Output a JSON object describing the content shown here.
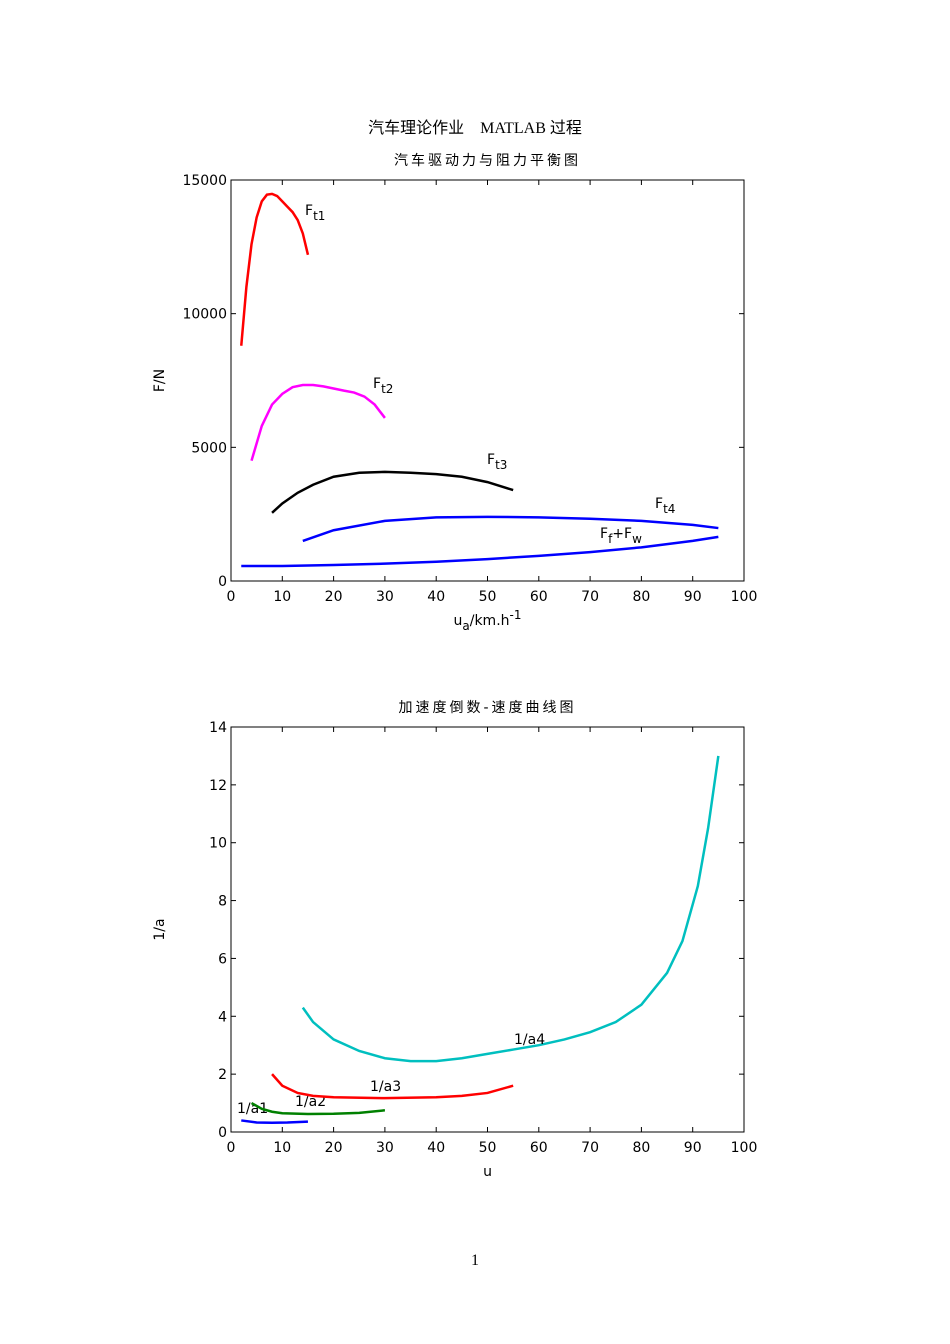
{
  "header": {
    "title": "汽车理论作业　MATLAB 过程"
  },
  "footer": {
    "page": "1"
  },
  "chart_data": [
    {
      "type": "line",
      "title": "汽车驱动力与阻力平衡图",
      "x_label": [
        "u",
        "a",
        "/km.h",
        "-1"
      ],
      "y_label": "F/N",
      "xlim": [
        0,
        100
      ],
      "xticks": [
        0,
        10,
        20,
        30,
        40,
        50,
        60,
        70,
        80,
        90,
        100
      ],
      "ylim": [
        0,
        15000
      ],
      "yticks": [
        0,
        5000,
        10000,
        15000
      ],
      "series": [
        {
          "label": [
            "F",
            "t1"
          ],
          "color": "#ff0000",
          "x": [
            2,
            3,
            4,
            5,
            6,
            7,
            8,
            9,
            10,
            11,
            12,
            13,
            14,
            15
          ],
          "values": [
            8800,
            11000,
            12600,
            13600,
            14200,
            14450,
            14480,
            14400,
            14200,
            14000,
            13800,
            13500,
            13000,
            12200
          ]
        },
        {
          "label": [
            "F",
            "t2"
          ],
          "color": "#ff00ff",
          "x": [
            4,
            6,
            8,
            10,
            12,
            14,
            16,
            18,
            20,
            22,
            24,
            26,
            28,
            30
          ],
          "values": [
            4500,
            5800,
            6600,
            7000,
            7250,
            7330,
            7330,
            7280,
            7200,
            7120,
            7050,
            6900,
            6600,
            6100
          ]
        },
        {
          "label": [
            "F",
            "t3"
          ],
          "color": "#000000",
          "x": [
            8,
            10,
            13,
            16,
            20,
            25,
            30,
            35,
            40,
            45,
            50,
            55
          ],
          "values": [
            2550,
            2900,
            3300,
            3600,
            3900,
            4050,
            4080,
            4050,
            4000,
            3900,
            3700,
            3400
          ]
        },
        {
          "label": [
            "F",
            "t4"
          ],
          "color": "#0000ff",
          "x": [
            14,
            20,
            30,
            40,
            50,
            60,
            70,
            80,
            90,
            95
          ],
          "values": [
            1500,
            1900,
            2250,
            2380,
            2400,
            2380,
            2330,
            2250,
            2100,
            1980
          ]
        },
        {
          "label": [
            "F",
            "f",
            "+F",
            "w"
          ],
          "color": "#0000ff",
          "x": [
            2,
            10,
            20,
            30,
            40,
            50,
            60,
            70,
            80,
            90,
            95
          ],
          "values": [
            560,
            560,
            600,
            650,
            720,
            820,
            940,
            1080,
            1260,
            1500,
            1650
          ]
        }
      ]
    },
    {
      "type": "line",
      "title": "加速度倒数-速度曲线图",
      "x_label": [
        "u"
      ],
      "y_label": "1/a",
      "xlim": [
        0,
        100
      ],
      "xticks": [
        0,
        10,
        20,
        30,
        40,
        50,
        60,
        70,
        80,
        90,
        100
      ],
      "ylim": [
        0,
        14
      ],
      "yticks": [
        0,
        2,
        4,
        6,
        8,
        10,
        12,
        14
      ],
      "series": [
        {
          "label": [
            "1/a1"
          ],
          "color": "#0000ff",
          "x": [
            2,
            5,
            8,
            11,
            15
          ],
          "values": [
            0.4,
            0.33,
            0.32,
            0.33,
            0.36
          ]
        },
        {
          "label": [
            "1/a2"
          ],
          "color": "#008000",
          "x": [
            4,
            6,
            8,
            10,
            15,
            20,
            25,
            30
          ],
          "values": [
            1.0,
            0.8,
            0.7,
            0.65,
            0.62,
            0.63,
            0.66,
            0.75
          ]
        },
        {
          "label": [
            "1/a3"
          ],
          "color": "#ff0000",
          "x": [
            8,
            10,
            13,
            16,
            20,
            30,
            40,
            45,
            50,
            55
          ],
          "values": [
            2.0,
            1.6,
            1.35,
            1.25,
            1.2,
            1.17,
            1.2,
            1.25,
            1.35,
            1.6
          ]
        },
        {
          "label": [
            "1/a4"
          ],
          "color": "#00bfbf",
          "x": [
            14,
            16,
            20,
            25,
            30,
            35,
            40,
            45,
            50,
            55,
            60,
            65,
            70,
            75,
            80,
            85,
            88,
            91,
            93,
            95
          ],
          "values": [
            4.3,
            3.8,
            3.2,
            2.8,
            2.55,
            2.45,
            2.45,
            2.55,
            2.7,
            2.85,
            3.0,
            3.2,
            3.45,
            3.8,
            4.4,
            5.5,
            6.6,
            8.5,
            10.5,
            13.0
          ]
        }
      ]
    }
  ]
}
